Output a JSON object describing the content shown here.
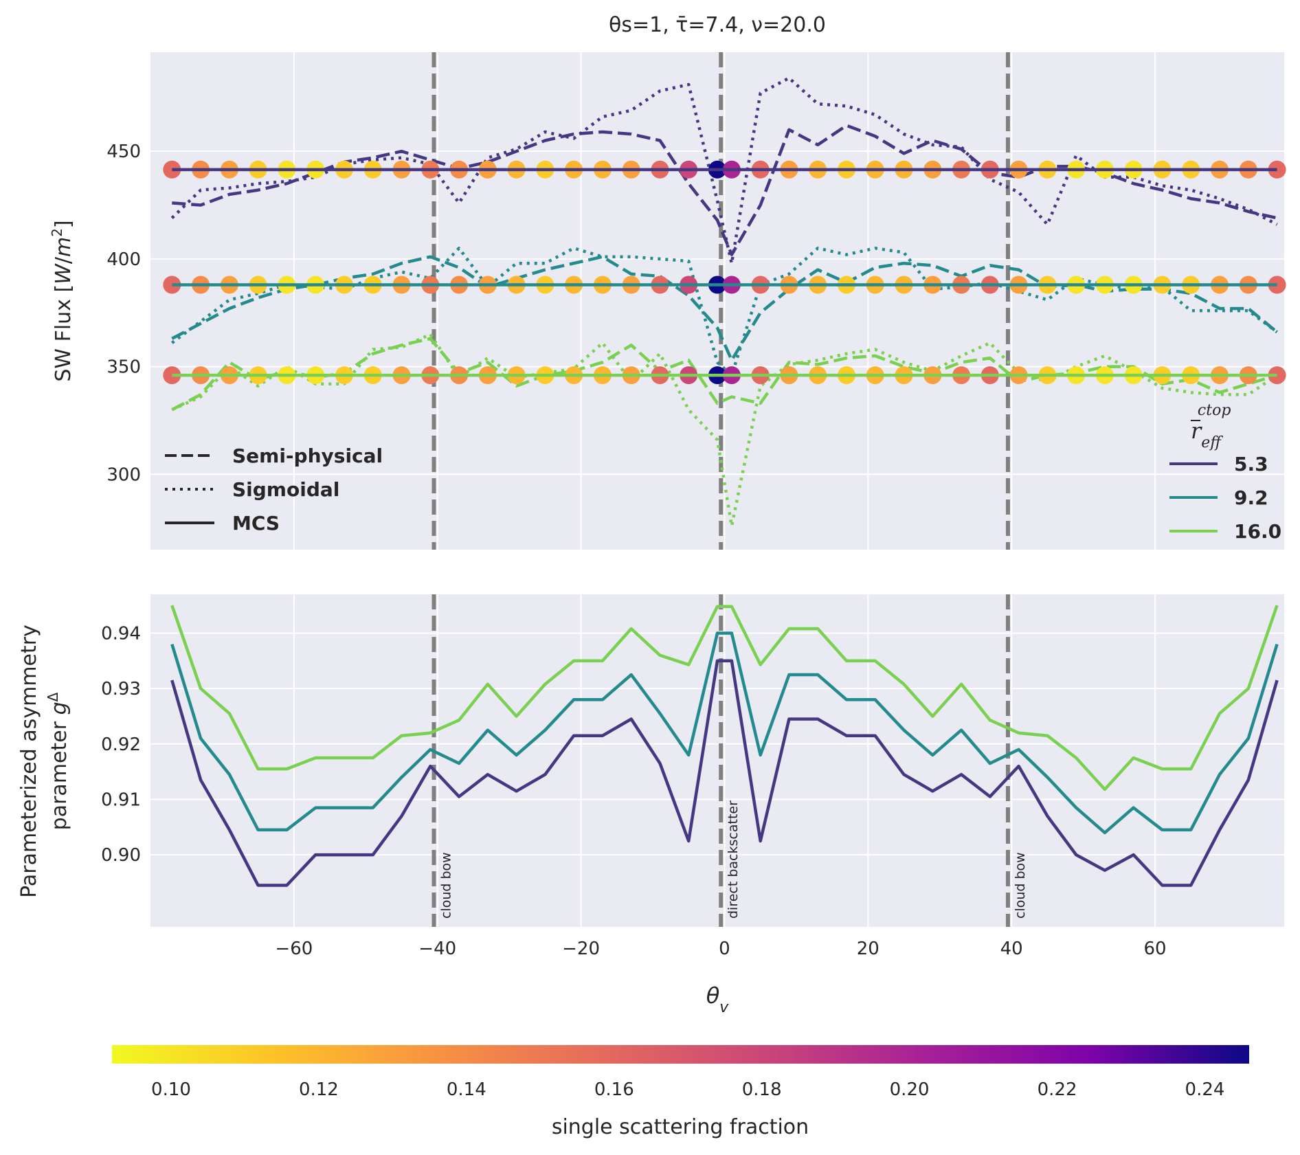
{
  "chart_data": [
    {
      "type": "line",
      "title": "θs=1, τ̄=7.4, ν=20.0",
      "ylabel": "SW Flux [W/m²]",
      "xlabel": "",
      "xlim": [
        -80,
        78
      ],
      "ylim": [
        265,
        496
      ],
      "yticks": [
        300,
        350,
        400,
        450
      ],
      "xticks": [
        -60,
        -40,
        -20,
        0,
        20,
        40,
        60
      ],
      "grid": true,
      "vlines": [
        -40.5,
        -0.5,
        39.5
      ],
      "style_legend": {
        "placement": "lower-left",
        "entries": [
          "Semi-physical",
          "Sigmoidal",
          "MCS"
        ]
      },
      "color_legend": {
        "placement": "lower-right",
        "title": "r̄eff ctop",
        "entries": [
          "5.3",
          "9.2",
          "16.0"
        ]
      },
      "x": [
        -77,
        -73,
        -69,
        -65,
        -61,
        -57,
        -53,
        -49,
        -45,
        -41,
        -37,
        -33,
        -29,
        -25,
        -21,
        -17,
        -13,
        -9,
        -5,
        -1,
        1,
        5,
        9,
        13,
        17,
        21,
        25,
        29,
        33,
        37,
        41,
        45,
        49,
        53,
        57,
        61,
        65,
        69,
        73,
        77
      ],
      "series": [
        {
          "name": "5.3",
          "color": "#453781",
          "mcs": 441.5,
          "semi_physical": [
            426,
            425,
            430,
            432,
            435,
            440,
            445,
            447,
            450,
            446,
            442,
            445,
            450,
            455,
            458,
            459,
            458,
            455,
            435,
            418,
            402,
            425,
            460,
            453,
            462,
            457,
            449,
            455,
            451,
            440,
            438,
            443,
            443,
            440,
            435,
            432,
            428,
            426,
            422,
            419
          ],
          "sigmoidal": [
            419,
            432,
            433,
            435,
            436,
            438,
            444,
            446,
            447,
            444,
            426,
            447,
            451,
            459,
            456,
            466,
            469,
            478,
            481,
            427,
            398,
            477,
            484,
            472,
            471,
            467,
            458,
            453,
            452,
            437,
            431,
            416,
            448,
            438,
            438,
            434,
            432,
            428,
            423,
            416
          ],
          "ss_fraction": [
            0.16,
            0.14,
            0.13,
            0.11,
            0.1,
            0.1,
            0.11,
            0.11,
            0.13,
            0.15,
            0.14,
            0.13,
            0.12,
            0.11,
            0.12,
            0.12,
            0.13,
            0.16,
            0.18,
            0.246,
            0.2,
            0.16,
            0.13,
            0.12,
            0.11,
            0.12,
            0.12,
            0.13,
            0.15,
            0.16,
            0.13,
            0.11,
            0.1,
            0.1,
            0.1,
            0.11,
            0.11,
            0.13,
            0.14,
            0.16
          ]
        },
        {
          "name": "9.2",
          "color": "#238a8d",
          "mcs": 388,
          "semi_physical": [
            363,
            370,
            377,
            382,
            386,
            388,
            391,
            393,
            398,
            401,
            396,
            387,
            391,
            395,
            398,
            401,
            393,
            392,
            383,
            368,
            353,
            375,
            386,
            395,
            389,
            396,
            398,
            397,
            392,
            397,
            395,
            387,
            388,
            385,
            386,
            386,
            384,
            377,
            377,
            366
          ],
          "sigmoidal": [
            361,
            371,
            381,
            384,
            388,
            387,
            386,
            391,
            394,
            391,
            405,
            387,
            398,
            398,
            405,
            401,
            401,
            400,
            399,
            352,
            346,
            388,
            393,
            405,
            402,
            405,
            403,
            386,
            387,
            389,
            385,
            381,
            391,
            388,
            386,
            387,
            376,
            376,
            376,
            366
          ],
          "ss_fraction": [
            0.16,
            0.14,
            0.13,
            0.11,
            0.1,
            0.1,
            0.11,
            0.11,
            0.13,
            0.15,
            0.14,
            0.13,
            0.12,
            0.11,
            0.12,
            0.12,
            0.13,
            0.16,
            0.18,
            0.246,
            0.2,
            0.16,
            0.13,
            0.12,
            0.11,
            0.12,
            0.12,
            0.13,
            0.15,
            0.16,
            0.13,
            0.11,
            0.1,
            0.1,
            0.1,
            0.11,
            0.11,
            0.13,
            0.14,
            0.16
          ]
        },
        {
          "name": "16.0",
          "color": "#7ad151",
          "mcs": 346,
          "semi_physical": [
            330,
            337,
            352,
            344,
            348,
            345,
            347,
            356,
            360,
            363,
            347,
            352,
            341,
            346,
            348,
            352,
            360,
            348,
            353,
            333,
            336,
            333,
            352,
            351,
            354,
            355,
            350,
            347,
            352,
            354,
            343,
            346,
            347,
            350,
            350,
            342,
            344,
            338,
            342,
            346
          ],
          "sigmoidal": [
            330,
            336,
            350,
            341,
            350,
            342,
            342,
            358,
            359,
            365,
            345,
            354,
            345,
            347,
            349,
            361,
            343,
            356,
            330,
            316,
            276,
            341,
            351,
            353,
            356,
            358,
            352,
            348,
            355,
            361,
            347,
            343,
            350,
            355,
            348,
            340,
            338,
            337,
            337,
            346
          ],
          "ss_fraction": [
            0.16,
            0.14,
            0.13,
            0.11,
            0.1,
            0.1,
            0.11,
            0.11,
            0.13,
            0.15,
            0.14,
            0.13,
            0.12,
            0.11,
            0.12,
            0.12,
            0.13,
            0.16,
            0.18,
            0.246,
            0.2,
            0.16,
            0.13,
            0.12,
            0.11,
            0.12,
            0.12,
            0.13,
            0.15,
            0.16,
            0.13,
            0.11,
            0.1,
            0.1,
            0.1,
            0.11,
            0.11,
            0.13,
            0.14,
            0.16
          ]
        }
      ]
    },
    {
      "type": "line",
      "title": "",
      "xlabel": "θv",
      "ylabel_line1": "Parameterized asymmetry",
      "ylabel_line2": "parameter g^Δ",
      "xlim": [
        -80,
        78
      ],
      "ylim": [
        0.887,
        0.947
      ],
      "yticks": [
        0.9,
        0.91,
        0.92,
        0.93,
        0.94
      ],
      "xticks": [
        -60,
        -40,
        -20,
        0,
        20,
        40,
        60
      ],
      "grid": true,
      "vlines": [
        -40.5,
        -0.5,
        39.5
      ],
      "annotations": [
        "cloud bow",
        "direct backscatter",
        "cloud bow"
      ],
      "x": [
        -77,
        -73,
        -69,
        -65,
        -61,
        -57,
        -53,
        -49,
        -45,
        -41,
        -37,
        -33,
        -29,
        -25,
        -21,
        -17,
        -13,
        -9,
        -5,
        -1,
        1,
        5,
        9,
        13,
        17,
        21,
        25,
        29,
        33,
        37,
        41,
        45,
        49,
        53,
        57,
        61,
        65,
        69,
        73,
        77
      ],
      "series": [
        {
          "name": "5.3",
          "color": "#453781",
          "values": [
            0.9315,
            0.9135,
            0.9045,
            0.8945,
            0.8945,
            0.9,
            0.9,
            0.9,
            0.907,
            0.916,
            0.9105,
            0.9145,
            0.9115,
            0.9145,
            0.9215,
            0.9215,
            0.9245,
            0.9165,
            0.9025,
            0.935,
            0.935,
            0.9025,
            0.9245,
            0.9245,
            0.9215,
            0.9215,
            0.9145,
            0.9115,
            0.9145,
            0.9105,
            0.916,
            0.907,
            0.9,
            0.8972,
            0.9,
            0.8945,
            0.8945,
            0.9045,
            0.9135,
            0.9315
          ]
        },
        {
          "name": "9.2",
          "color": "#238a8d",
          "values": [
            0.938,
            0.921,
            0.9145,
            0.9045,
            0.9045,
            0.9085,
            0.9085,
            0.9085,
            0.914,
            0.919,
            0.9165,
            0.9225,
            0.918,
            0.9225,
            0.928,
            0.928,
            0.9325,
            0.9255,
            0.918,
            0.94,
            0.94,
            0.918,
            0.9325,
            0.9325,
            0.928,
            0.928,
            0.9225,
            0.918,
            0.9225,
            0.9165,
            0.919,
            0.914,
            0.9085,
            0.904,
            0.9085,
            0.9045,
            0.9045,
            0.9145,
            0.921,
            0.938
          ]
        },
        {
          "name": "16.0",
          "color": "#7ad151",
          "values": [
            0.945,
            0.93,
            0.9255,
            0.9155,
            0.9155,
            0.9175,
            0.9175,
            0.9175,
            0.9215,
            0.922,
            0.9243,
            0.9308,
            0.925,
            0.9308,
            0.935,
            0.935,
            0.9408,
            0.936,
            0.9343,
            0.9448,
            0.9448,
            0.9343,
            0.9408,
            0.9408,
            0.935,
            0.935,
            0.9308,
            0.925,
            0.9308,
            0.9243,
            0.922,
            0.9215,
            0.9175,
            0.9118,
            0.9175,
            0.9155,
            0.9155,
            0.9255,
            0.93,
            0.945
          ]
        }
      ]
    },
    {
      "type": "colorbar",
      "label": "single scattering fraction",
      "colormap": "plasma_r",
      "vmin": 0.092,
      "vmax": 0.246,
      "ticks": [
        "0.10",
        "0.12",
        "0.14",
        "0.16",
        "0.18",
        "0.20",
        "0.22",
        "0.24"
      ],
      "tick_values": [
        0.1,
        0.12,
        0.14,
        0.16,
        0.18,
        0.2,
        0.22,
        0.24
      ]
    }
  ]
}
